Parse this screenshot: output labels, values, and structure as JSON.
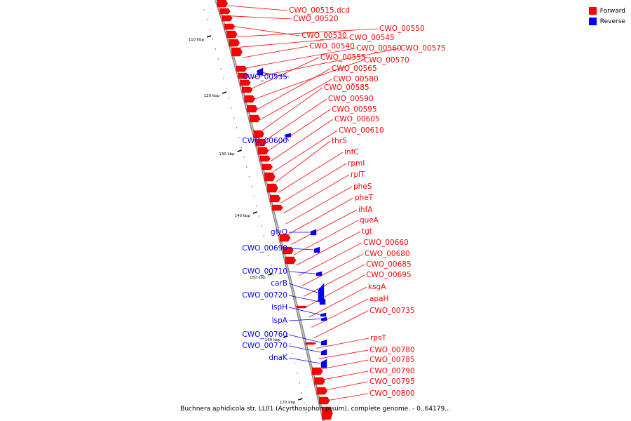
{
  "legend": [
    {
      "label": "Forward",
      "color": "#ff0000"
    },
    {
      "label": "Reverse",
      "color": "#0000ff"
    }
  ],
  "caption": "Buchnera aphidicola str. LL01 (Acyrthosiphon pisum), complete genome. - 0..64179...",
  "ticks": [
    {
      "kbp": 110,
      "label": "110 kbp"
    },
    {
      "kbp": 120,
      "label": "120 kbp"
    },
    {
      "kbp": 130,
      "label": "130 kbp"
    },
    {
      "kbp": 140,
      "label": "140 kbp"
    },
    {
      "kbp": 150,
      "label": "150 kbp"
    },
    {
      "kbp": 160,
      "label": "160 kbp"
    },
    {
      "kbp": 170,
      "label": "170 kbp"
    }
  ],
  "forward_genes": [
    "CWO_00515.dcd",
    "CWO_00520",
    "CWO_00530",
    "CWO_00550",
    "CWO_00545",
    "CWO_00540",
    "CWO_00560",
    "CWO_00575",
    "CWO_00555",
    "CWO_00570",
    "CWO_00565",
    "CWO_00580",
    "CWO_00585",
    "CWO_00590",
    "CWO_00595",
    "CWO_00605",
    "CWO_00610",
    "thrS",
    "infC",
    "rpmI",
    "rplT",
    "pheS",
    "pheT",
    "ihfA",
    "queA",
    "tgt",
    "CWO_00660",
    "CWO_00680",
    "CWO_00685",
    "CWO_00695",
    "ksgA",
    "apaH",
    "CWO_00735",
    "rpsT",
    "CWO_00780",
    "CWO_00785",
    "CWO_00790",
    "CWO_00795",
    "CWO_00800"
  ],
  "reverse_genes": [
    "CWO_00535",
    "CWO_00600",
    "glyQ",
    "CWO_00690",
    "CWO_00710",
    "carB",
    "CWO_00720",
    "ispH",
    "lspA",
    "CWO_00760",
    "CWO_00770",
    "dnaK"
  ]
}
